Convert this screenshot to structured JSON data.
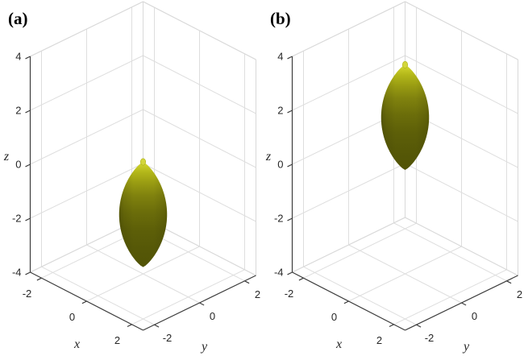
{
  "figure": {
    "background": "#ffffff"
  },
  "style": {
    "grid_color": "#dedede",
    "box_edge_color": "#d9d9d9",
    "axis_color": "#3d3d3d",
    "tick_label_color": "#262626",
    "panel_label_color": "#000000",
    "nub_color": "#d3d63b",
    "nub_ring_color": "#a9ad17",
    "surface_gradient": [
      [
        "0",
        "#dade59"
      ],
      [
        "0.035",
        "#c9cd27"
      ],
      [
        "0.10",
        "#b2b619"
      ],
      [
        "0.20",
        "#999c12"
      ],
      [
        "0.32",
        "#80820e"
      ],
      [
        "0.48",
        "#6b6d0a"
      ],
      [
        "0.65",
        "#5d5f08"
      ],
      [
        "0.85",
        "#555707"
      ],
      [
        "1",
        "#515306"
      ]
    ],
    "surface_shade": [
      [
        "0",
        "rgba(35,35,0,0.30)"
      ],
      [
        "0.10",
        "rgba(35,35,0,0.12)"
      ],
      [
        "0.30",
        "rgba(35,35,0,0)"
      ],
      [
        "0.72",
        "rgba(35,35,0,0)"
      ],
      [
        "0.92",
        "rgba(35,35,0,0.12)"
      ],
      [
        "1",
        "rgba(35,35,0,0.22)"
      ]
    ]
  },
  "chart_data": [
    {
      "type": "surface3d",
      "title": "(a)",
      "xlabel": "x",
      "ylabel": "y",
      "zlabel": "z",
      "xlim": [
        -2.5,
        2.5
      ],
      "ylim": [
        -2.5,
        2.5
      ],
      "zlim": [
        -4,
        4
      ],
      "xticks": [
        -2,
        0,
        2
      ],
      "yticks": [
        -2,
        0,
        2
      ],
      "zticks": [
        -4,
        -2,
        0,
        2,
        4
      ],
      "grid": true,
      "surface": {
        "shape": "spindle_of_revolution",
        "center_x": 0,
        "center_y": 0,
        "center_z": -1.8,
        "half_height": 1.95,
        "max_radius": 0.75,
        "z_extent": [
          -3.75,
          0.15
        ],
        "color_description": "olive-yellow, lit from above"
      }
    },
    {
      "type": "surface3d",
      "title": "(b)",
      "xlabel": "x",
      "ylabel": "y",
      "zlabel": "z",
      "xlim": [
        -2.5,
        2.5
      ],
      "ylim": [
        -2.5,
        2.5
      ],
      "zlim": [
        -4,
        4
      ],
      "xticks": [
        -2,
        0,
        2
      ],
      "yticks": [
        -2,
        0,
        2
      ],
      "zticks": [
        -4,
        -2,
        0,
        2,
        4
      ],
      "grid": true,
      "surface": {
        "shape": "spindle_of_revolution",
        "center_x": 0,
        "center_y": 0,
        "center_z": 1.8,
        "half_height": 1.95,
        "max_radius": 0.75,
        "z_extent": [
          -0.15,
          3.75
        ],
        "color_description": "olive-yellow, lit from above"
      }
    }
  ]
}
